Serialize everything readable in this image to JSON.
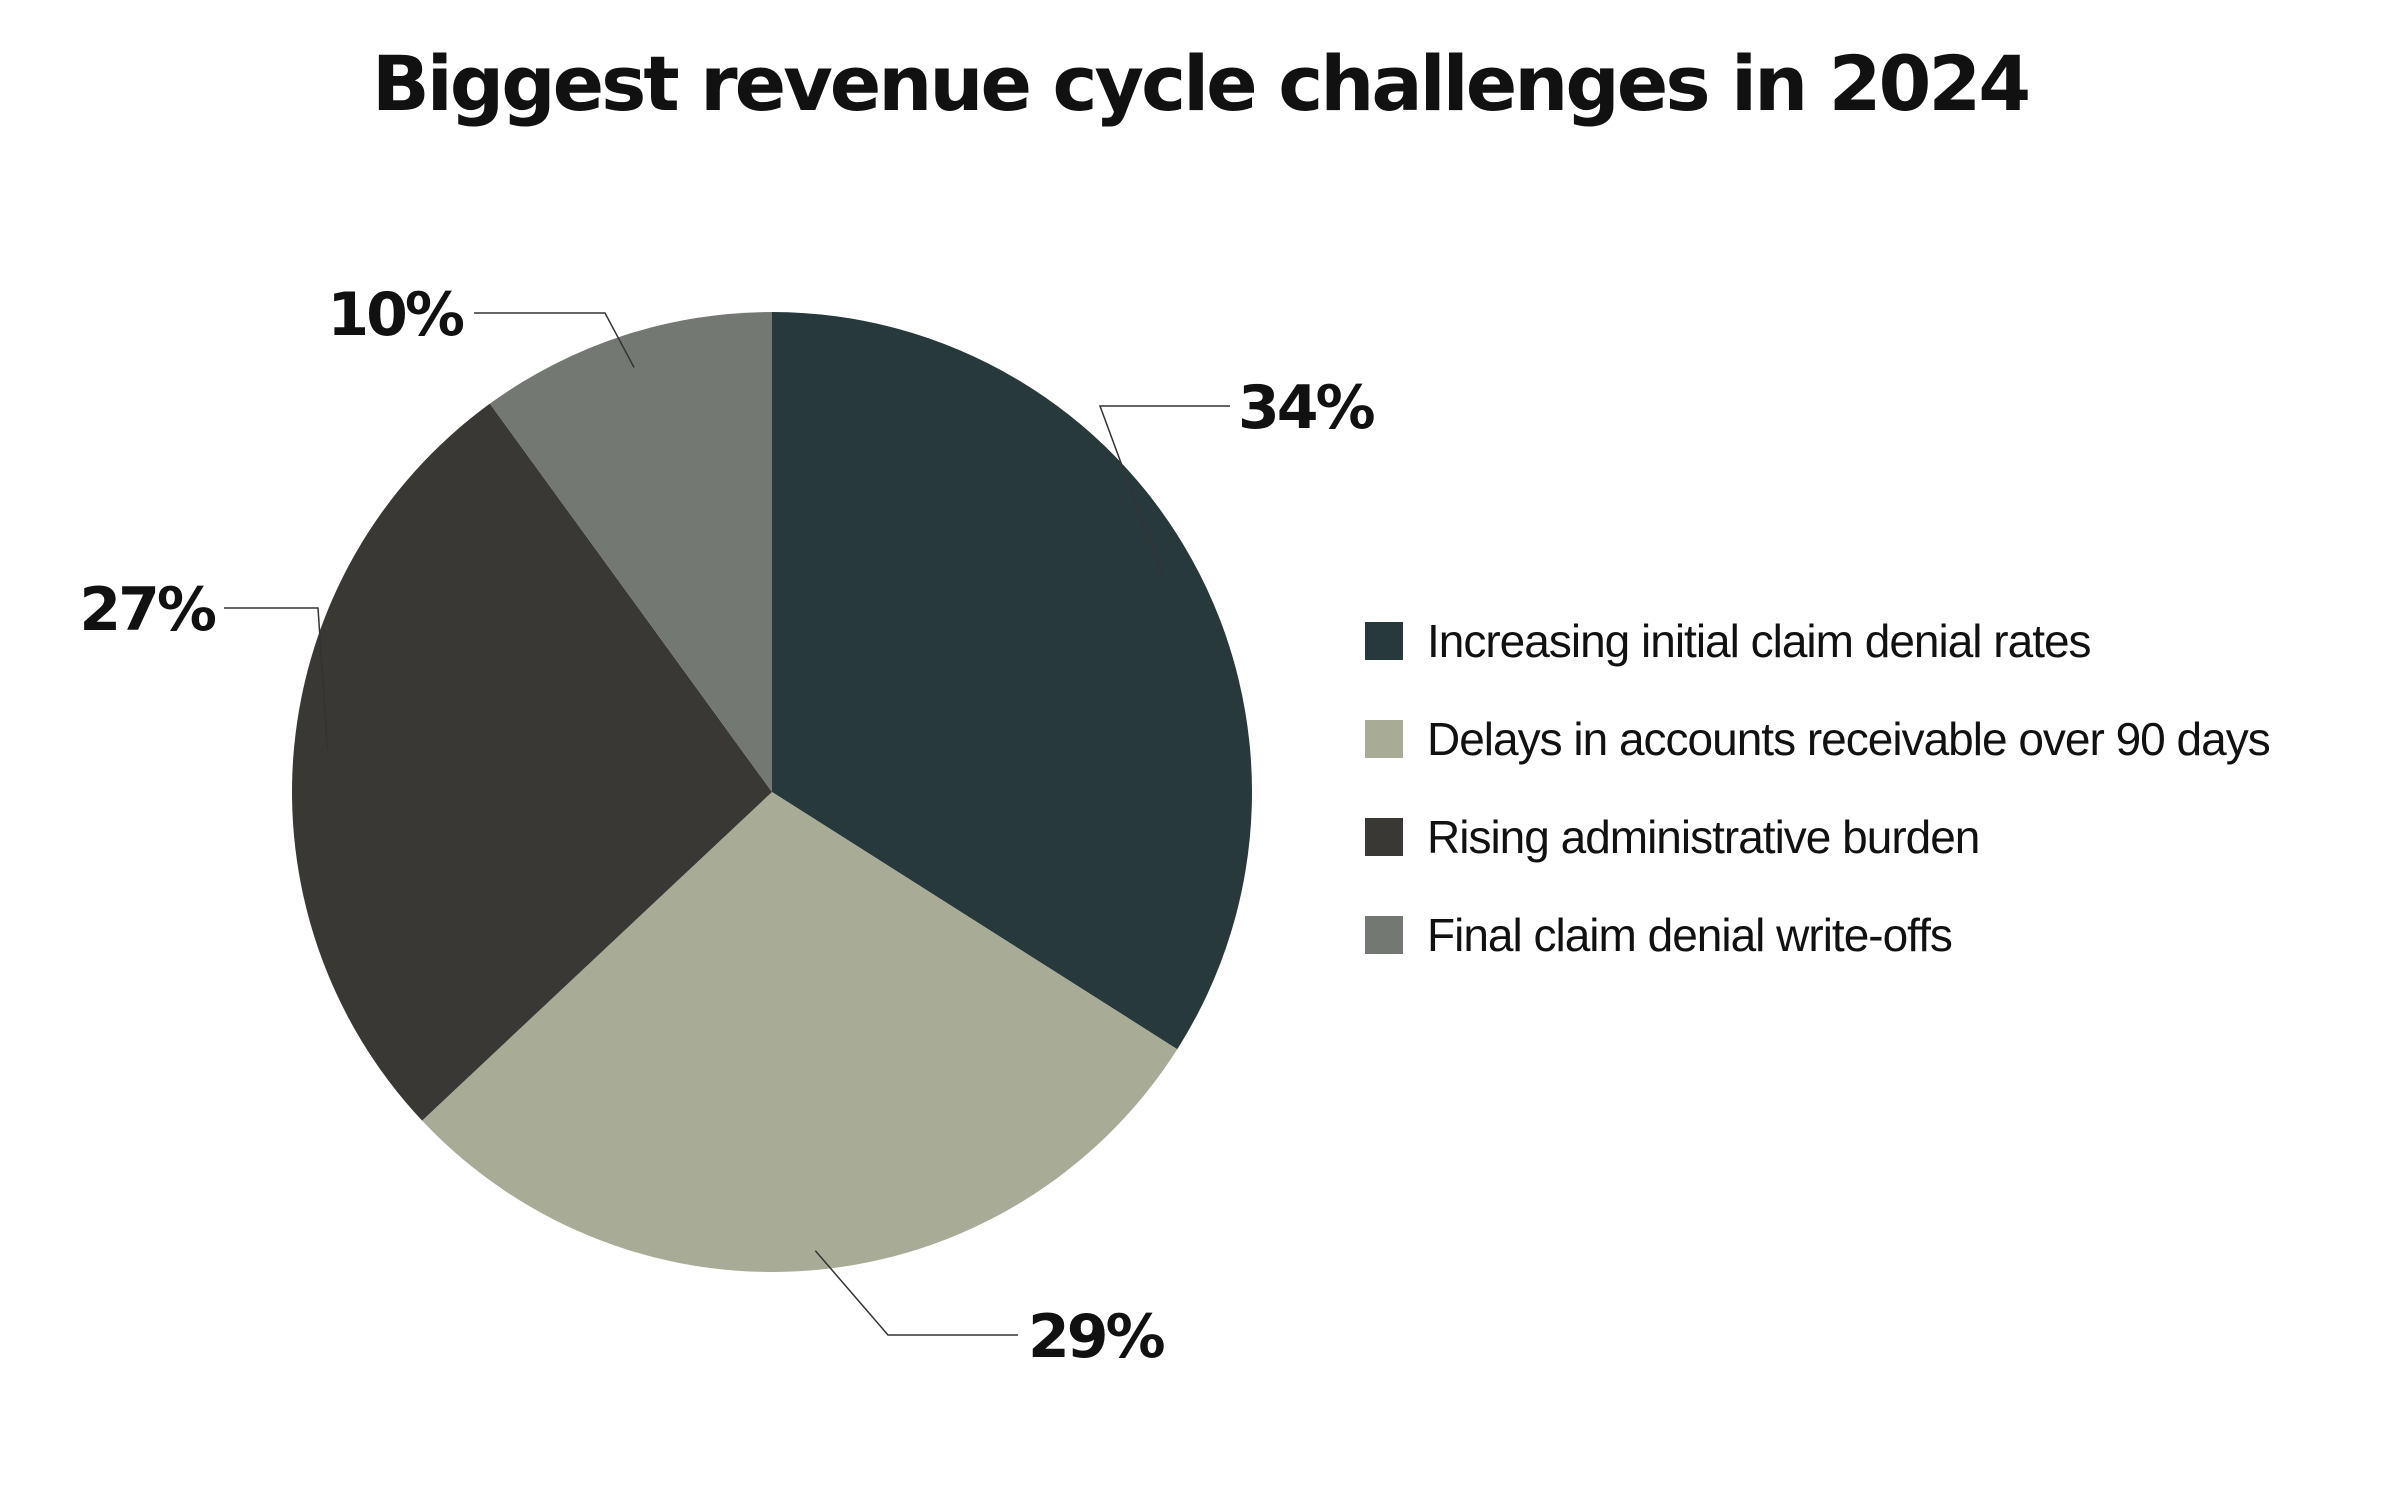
{
  "chart_data": {
    "type": "pie",
    "title": "Biggest revenue cycle challenges in 2024",
    "categories": [
      "Increasing initial claim denial rates",
      "Delays in accounts receivable over 90 days",
      "Rising administrative burden",
      "Final claim denial write-offs"
    ],
    "values": [
      34,
      29,
      27,
      10
    ],
    "value_labels": [
      "34%",
      "29%",
      "27%",
      "10%"
    ],
    "colors": [
      "#27393a",
      "#a8ac97",
      "#393835",
      "#747873"
    ],
    "legend_placement": "right",
    "start_angle": "12 o'clock",
    "direction": "clockwise"
  }
}
